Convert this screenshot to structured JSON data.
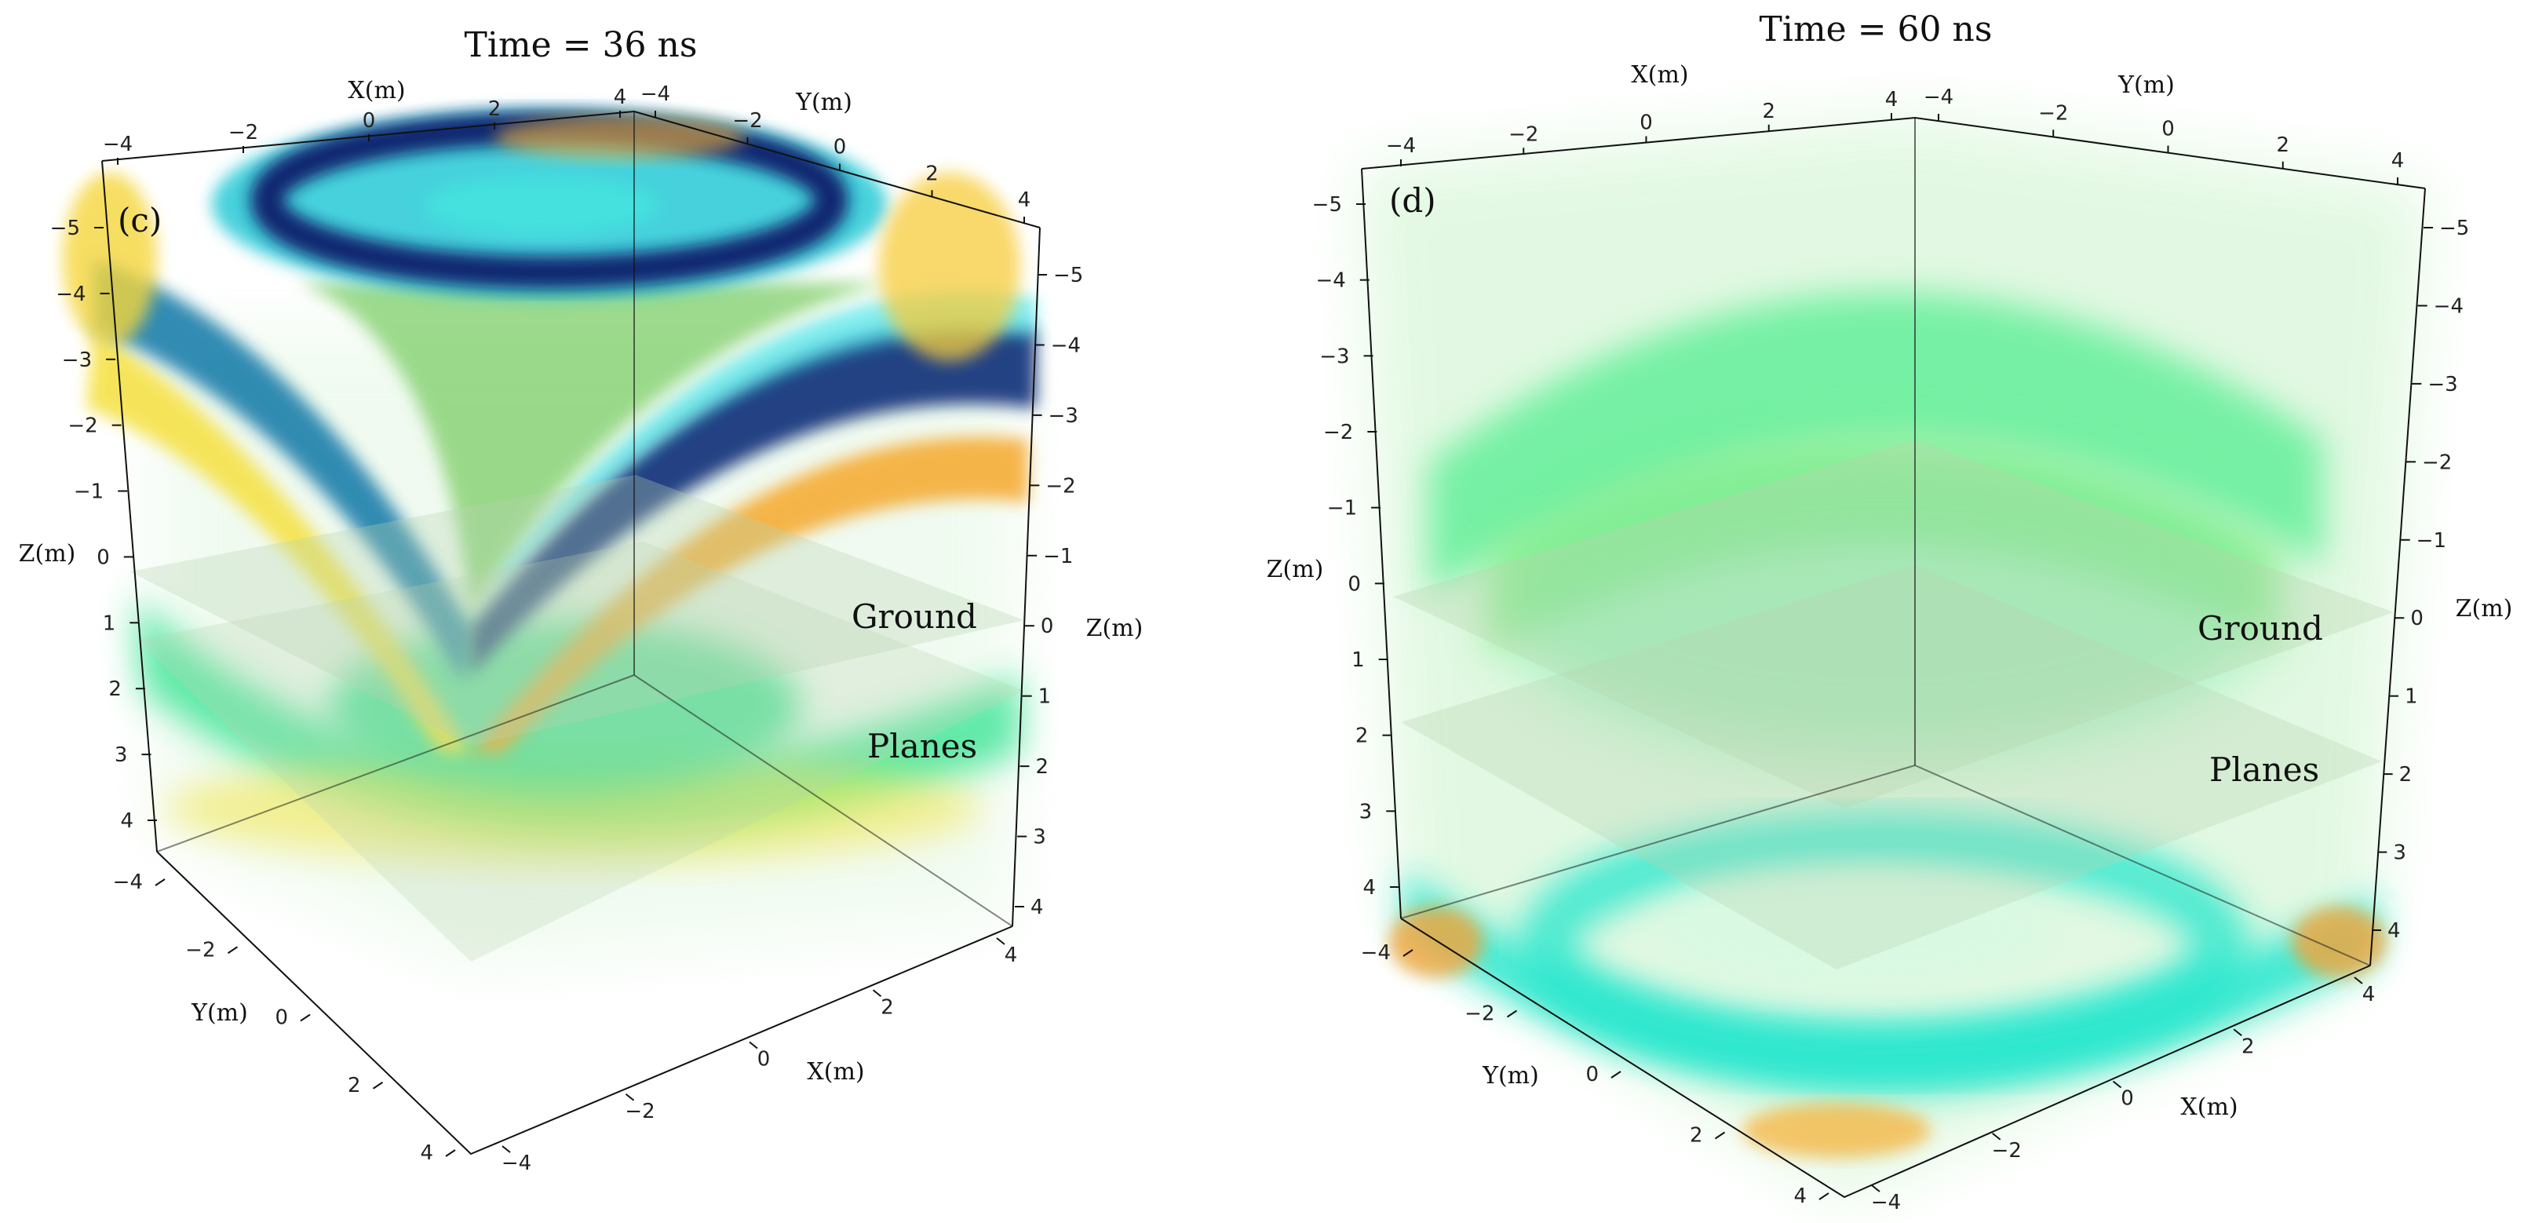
{
  "colors": {
    "dark_blue": "#0b1f6b",
    "teal": "#1d7fa8",
    "cyan": "#2fe0e6",
    "green": "#3fe88a",
    "light_green": "#c9f5c8",
    "yellow": "#f6e84a",
    "orange": "#f2a52a",
    "plane": "#b9d3b0",
    "axis": "#111111"
  },
  "chart_data": [
    {
      "type": "volume-3d",
      "panel_label": "(c)",
      "title": "Time = 36 ns",
      "time_ns": 36,
      "axes": {
        "x": {
          "label": "X(m)",
          "range": [
            -4,
            4
          ],
          "ticks_top": [
            "−4",
            "−2",
            "0",
            "2",
            "4"
          ],
          "ticks_bottom": [
            "4",
            "2",
            "0",
            "−2",
            "−4"
          ]
        },
        "y": {
          "label": "Y(m)",
          "range": [
            -4,
            4
          ],
          "ticks_top": [
            "−4",
            "−2",
            "0",
            "2",
            "4"
          ],
          "ticks_bottom": [
            "−4",
            "−2",
            "0",
            "2",
            "4"
          ]
        },
        "z_left": {
          "label": "Z(m)",
          "ticks": [
            "−5",
            "−4",
            "−3",
            "−2",
            "−1",
            "0",
            "1",
            "2",
            "3",
            "4"
          ]
        },
        "z_right": {
          "label": "Z(m)",
          "ticks": [
            "−5",
            "−4",
            "−3",
            "−2",
            "−1",
            "0",
            "1",
            "2",
            "3",
            "4"
          ]
        }
      },
      "annotations": [
        "Ground",
        "Planes"
      ]
    },
    {
      "type": "volume-3d",
      "panel_label": "(d)",
      "title": "Time = 60 ns",
      "time_ns": 60,
      "axes": {
        "x": {
          "label": "X(m)",
          "range": [
            -4,
            4
          ],
          "ticks_top": [
            "−4",
            "−2",
            "0",
            "2",
            "4"
          ],
          "ticks_bottom": [
            "4",
            "2",
            "0",
            "−2",
            "−4"
          ]
        },
        "y": {
          "label": "Y(m)",
          "range": [
            -4,
            4
          ],
          "ticks_top": [
            "−4",
            "−2",
            "0",
            "2",
            "4"
          ],
          "ticks_bottom": [
            "−4",
            "−2",
            "0",
            "2",
            "4"
          ]
        },
        "z_left": {
          "label": "Z(m)",
          "ticks": [
            "−5",
            "−4",
            "−3",
            "−2",
            "−1",
            "0",
            "1",
            "2",
            "3",
            "4"
          ]
        },
        "z_right": {
          "label": "Z(m)",
          "ticks": [
            "−5",
            "−4",
            "−3",
            "−2",
            "−1",
            "0",
            "1",
            "2",
            "3",
            "4"
          ]
        }
      },
      "annotations": [
        "Ground",
        "Planes"
      ]
    }
  ]
}
